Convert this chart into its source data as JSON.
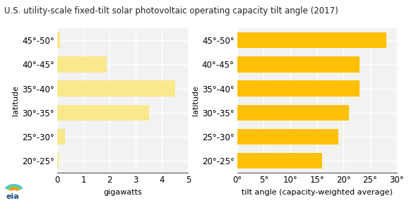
{
  "title": "U.S. utility-scale fixed-tilt solar photovoltaic operating capacity tilt angle (2017)",
  "categories": [
    "45°-50°",
    "40°-45°",
    "35°-40°",
    "30°-35°",
    "25°-30°",
    "20°-25°"
  ],
  "gw_values": [
    0.1,
    1.9,
    4.5,
    3.5,
    0.3,
    0.05
  ],
  "angle_values": [
    28,
    23,
    23,
    21,
    19,
    16
  ],
  "bar_color_left": "#FAE88C",
  "bar_color_right": "#FFC107",
  "ylabel": "latitude",
  "xlabel_left": "gigawatts",
  "xlabel_right": "tilt angle (capacity-weighted average)",
  "xlim_left": [
    0,
    5
  ],
  "xlim_right": [
    0,
    30
  ],
  "xticks_left": [
    0,
    1,
    2,
    3,
    4,
    5
  ],
  "xticks_right": [
    0,
    5,
    10,
    15,
    20,
    25,
    30
  ],
  "xtick_labels_right": [
    "0°",
    "5°",
    "10°",
    "15°",
    "20°",
    "25°",
    "30°"
  ],
  "background_color": "#FFFFFF",
  "plot_bg_color": "#F2F2F2",
  "grid_color": "#FFFFFF",
  "title_fontsize": 8.5,
  "axis_fontsize": 8,
  "tick_fontsize": 8.5
}
